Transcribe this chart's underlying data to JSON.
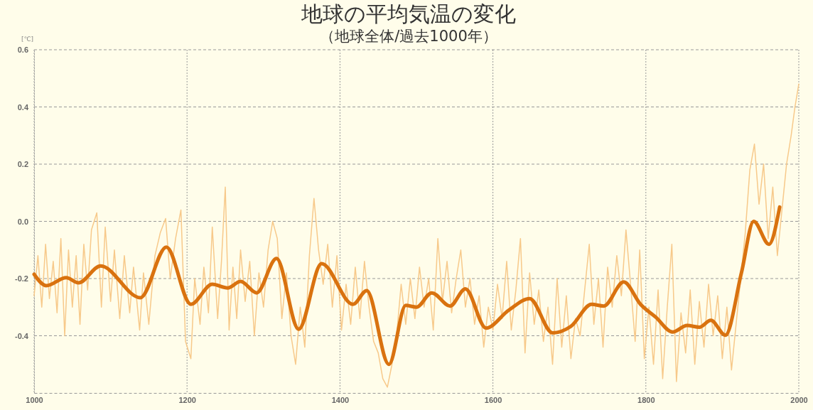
{
  "chart_data": {
    "type": "line",
    "title": "地球の平均気温の変化",
    "subtitle": "（地球全体/過去1000年）",
    "ylabel": "[℃]",
    "xlim": [
      1000,
      2000
    ],
    "xticks": [
      1000,
      1200,
      1400,
      1600,
      1800,
      2000
    ],
    "ylim": [
      -0.6,
      0.6
    ],
    "yticks": [
      0.6,
      0.4,
      0.2,
      {
        "value": 0,
        "label": "0.0"
      },
      -0.2,
      -0.4
    ],
    "grid": true,
    "marker": "none",
    "line_style": "solid",
    "series": [
      {
        "color": "#f7c98a",
        "x": [
          1000,
          1005,
          1010,
          1015,
          1020,
          1025,
          1030,
          1035,
          1040,
          1045,
          1050,
          1055,
          1060,
          1065,
          1070,
          1075,
          1082,
          1088,
          1093,
          1100,
          1105,
          1112,
          1118,
          1125,
          1130,
          1138,
          1143,
          1150,
          1158,
          1165,
          1172,
          1178,
          1185,
          1192,
          1198,
          1205,
          1210,
          1217,
          1222,
          1228,
          1233,
          1240,
          1245,
          1250,
          1255,
          1260,
          1265,
          1270,
          1276,
          1282,
          1288,
          1294,
          1300,
          1306,
          1312,
          1318,
          1324,
          1330,
          1336,
          1342,
          1348,
          1354,
          1360,
          1366,
          1372,
          1378,
          1384,
          1390,
          1396,
          1402,
          1408,
          1414,
          1420,
          1426,
          1432,
          1438,
          1444,
          1450,
          1456,
          1462,
          1468,
          1474,
          1480,
          1486,
          1492,
          1498,
          1504,
          1510,
          1516,
          1522,
          1528,
          1534,
          1540,
          1546,
          1552,
          1558,
          1564,
          1570,
          1576,
          1582,
          1588,
          1594,
          1600,
          1606,
          1612,
          1618,
          1624,
          1630,
          1636,
          1642,
          1648,
          1654,
          1660,
          1666,
          1672,
          1678,
          1684,
          1690,
          1696,
          1702,
          1708,
          1714,
          1720,
          1726,
          1732,
          1738,
          1744,
          1750,
          1756,
          1762,
          1768,
          1774,
          1780,
          1786,
          1792,
          1798,
          1804,
          1810,
          1816,
          1822,
          1828,
          1834,
          1840,
          1846,
          1852,
          1858,
          1864,
          1870,
          1876,
          1882,
          1888,
          1894,
          1900,
          1906,
          1912,
          1918,
          1924,
          1930,
          1936,
          1942,
          1948,
          1954,
          1960,
          1966,
          1972,
          1978,
          1984,
          1990,
          1995,
          2000
        ],
        "values": [
          -0.26,
          -0.12,
          -0.3,
          -0.08,
          -0.27,
          -0.14,
          -0.32,
          -0.06,
          -0.4,
          -0.1,
          -0.3,
          -0.12,
          -0.36,
          -0.08,
          -0.24,
          -0.03,
          0.03,
          -0.3,
          -0.02,
          -0.28,
          -0.1,
          -0.34,
          -0.12,
          -0.32,
          -0.16,
          -0.38,
          -0.18,
          -0.36,
          -0.12,
          -0.04,
          0.01,
          -0.2,
          -0.06,
          0.04,
          -0.42,
          -0.48,
          -0.2,
          -0.36,
          -0.16,
          -0.32,
          -0.02,
          -0.34,
          -0.14,
          0.12,
          -0.38,
          -0.16,
          -0.34,
          -0.1,
          -0.28,
          -0.14,
          -0.4,
          -0.18,
          -0.3,
          -0.1,
          0.0,
          -0.06,
          -0.34,
          -0.18,
          -0.4,
          -0.5,
          -0.3,
          -0.44,
          -0.12,
          0.08,
          -0.1,
          -0.22,
          -0.08,
          -0.3,
          -0.12,
          -0.38,
          -0.22,
          -0.36,
          -0.16,
          -0.34,
          -0.14,
          -0.3,
          -0.42,
          -0.46,
          -0.55,
          -0.58,
          -0.5,
          -0.4,
          -0.22,
          -0.36,
          -0.2,
          -0.34,
          -0.16,
          -0.3,
          -0.2,
          -0.38,
          -0.06,
          -0.28,
          -0.14,
          -0.32,
          -0.2,
          -0.1,
          -0.3,
          -0.2,
          -0.36,
          -0.26,
          -0.44,
          -0.3,
          -0.38,
          -0.22,
          -0.34,
          -0.14,
          -0.38,
          -0.24,
          -0.06,
          -0.46,
          -0.18,
          -0.36,
          -0.24,
          -0.42,
          -0.3,
          -0.5,
          -0.2,
          -0.44,
          -0.26,
          -0.48,
          -0.34,
          -0.4,
          -0.24,
          -0.08,
          -0.36,
          -0.2,
          -0.44,
          -0.16,
          -0.3,
          -0.12,
          -0.26,
          -0.03,
          -0.22,
          -0.42,
          -0.1,
          -0.48,
          -0.3,
          -0.5,
          -0.24,
          -0.55,
          -0.3,
          -0.08,
          -0.56,
          -0.32,
          -0.46,
          -0.24,
          -0.5,
          -0.28,
          -0.44,
          -0.22,
          -0.4,
          -0.26,
          -0.48,
          -0.3,
          -0.52,
          -0.36,
          -0.2,
          -0.04,
          0.18,
          0.27,
          0.06,
          0.2,
          -0.06,
          0.12,
          -0.12,
          0.04,
          0.2,
          0.3,
          0.4,
          0.48
        ]
      },
      {
        "color": "#d9720f",
        "x": [
          1000,
          1016,
          1042,
          1058,
          1087,
          1139,
          1173,
          1205,
          1233,
          1253,
          1270,
          1291,
          1317,
          1346,
          1376,
          1417,
          1435,
          1464,
          1486,
          1500,
          1520,
          1544,
          1564,
          1591,
          1621,
          1648,
          1678,
          1702,
          1729,
          1745,
          1771,
          1793,
          1813,
          1835,
          1854,
          1870,
          1885,
          1904,
          1925,
          1941,
          1961,
          1975
        ],
        "values": [
          -0.185,
          -0.225,
          -0.197,
          -0.215,
          -0.156,
          -0.267,
          -0.09,
          -0.29,
          -0.22,
          -0.233,
          -0.21,
          -0.25,
          -0.13,
          -0.377,
          -0.148,
          -0.29,
          -0.242,
          -0.5,
          -0.294,
          -0.3,
          -0.25,
          -0.296,
          -0.236,
          -0.373,
          -0.31,
          -0.27,
          -0.39,
          -0.367,
          -0.29,
          -0.296,
          -0.212,
          -0.29,
          -0.335,
          -0.387,
          -0.364,
          -0.37,
          -0.346,
          -0.398,
          -0.18,
          0.0,
          -0.08,
          0.05
        ]
      }
    ]
  }
}
